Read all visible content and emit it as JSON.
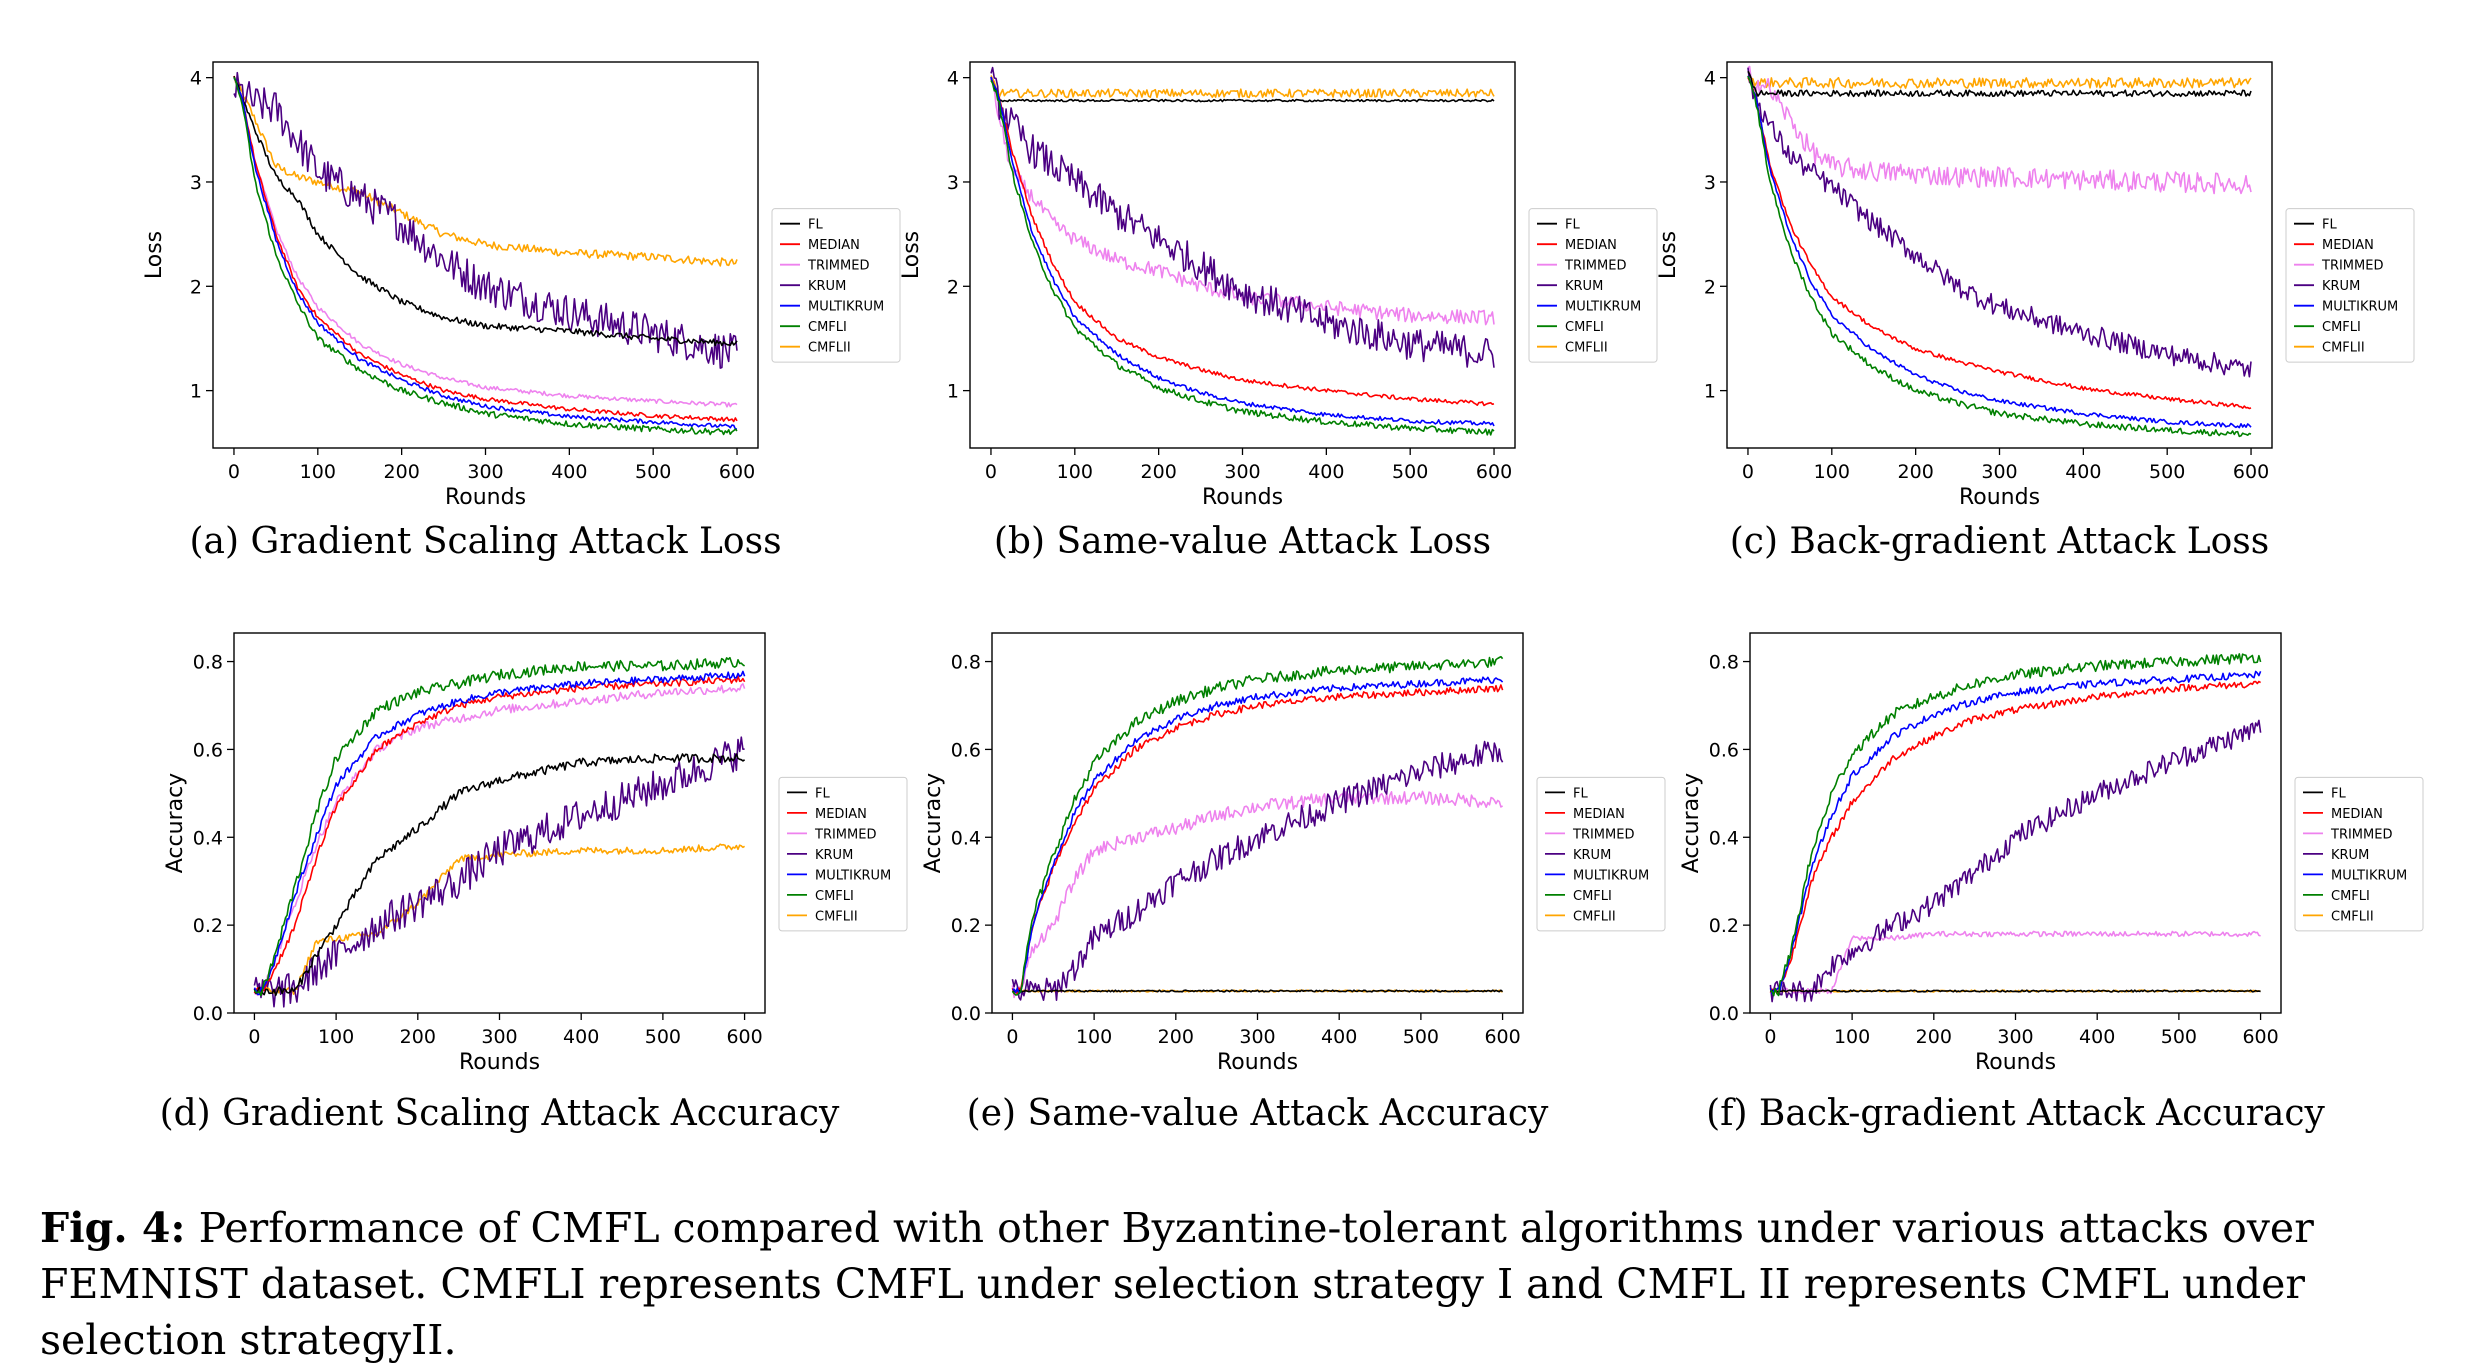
{
  "figure": {
    "caption_label": "Fig. 4:",
    "caption_text": "Performance of CMFL compared with other Byzantine-tolerant algorithms under various attacks over FEMNIST dataset. CMFLI represents CMFL under selection strategy I and CMFL II represents CMFL under selection strategyII."
  },
  "legend_labels": [
    "FL",
    "MEDIAN",
    "TRIMMED",
    "KRUM",
    "MULTIKRUM",
    "CMFLI",
    "CMFLII"
  ],
  "colors": {
    "FL": "#000000",
    "MEDIAN": "#ff0000",
    "TRIMMED": "#ee82ee",
    "KRUM": "#4b0082",
    "MULTIKRUM": "#0000ff",
    "CMFLI": "#008000",
    "CMFLII": "#ffa500"
  },
  "chart_data": [
    {
      "type": "line",
      "caption": "(a) Gradient Scaling Attack Loss",
      "xlabel": "Rounds",
      "ylabel": "Loss",
      "xlim": [
        -25,
        625
      ],
      "ylim": [
        0.45,
        4.15
      ],
      "xticks": [
        0,
        100,
        200,
        300,
        400,
        500,
        600
      ],
      "yticks": [
        1,
        2,
        3,
        4
      ],
      "grid": false,
      "legend": "right",
      "x": [
        0,
        10,
        25,
        50,
        75,
        100,
        150,
        200,
        250,
        300,
        400,
        500,
        600
      ],
      "series": [
        {
          "name": "FL",
          "values": [
            4.0,
            3.8,
            3.5,
            3.05,
            2.85,
            2.5,
            2.1,
            1.85,
            1.7,
            1.62,
            1.57,
            1.5,
            1.45
          ],
          "noise": 0.03
        },
        {
          "name": "MEDIAN",
          "values": [
            4.0,
            3.8,
            3.2,
            2.5,
            2.0,
            1.7,
            1.35,
            1.15,
            1.0,
            0.92,
            0.82,
            0.76,
            0.72
          ],
          "noise": 0.02
        },
        {
          "name": "TRIMMED",
          "values": [
            4.0,
            3.8,
            3.2,
            2.55,
            2.1,
            1.8,
            1.45,
            1.25,
            1.12,
            1.03,
            0.95,
            0.9,
            0.86
          ],
          "noise": 0.02
        },
        {
          "name": "KRUM",
          "values": [
            3.9,
            3.85,
            3.75,
            3.7,
            3.4,
            3.1,
            2.85,
            2.6,
            2.25,
            2.0,
            1.75,
            1.55,
            1.35
          ],
          "noise": 0.18
        },
        {
          "name": "MULTIKRUM",
          "values": [
            4.0,
            3.8,
            3.15,
            2.45,
            1.95,
            1.65,
            1.3,
            1.1,
            0.95,
            0.85,
            0.75,
            0.7,
            0.65
          ],
          "noise": 0.02
        },
        {
          "name": "CMFLI",
          "values": [
            4.0,
            3.75,
            3.0,
            2.3,
            1.85,
            1.5,
            1.2,
            1.0,
            0.88,
            0.78,
            0.68,
            0.63,
            0.6
          ],
          "noise": 0.03
        },
        {
          "name": "CMFLII",
          "values": [
            4.0,
            3.85,
            3.6,
            3.15,
            3.05,
            3.0,
            2.9,
            2.7,
            2.5,
            2.4,
            2.32,
            2.28,
            2.22
          ],
          "noise": 0.04
        }
      ]
    },
    {
      "type": "line",
      "caption": "(b) Same-value Attack Loss",
      "xlabel": "Rounds",
      "ylabel": "Loss",
      "xlim": [
        -25,
        625
      ],
      "ylim": [
        0.45,
        4.15
      ],
      "xticks": [
        0,
        100,
        200,
        300,
        400,
        500,
        600
      ],
      "yticks": [
        1,
        2,
        3,
        4
      ],
      "grid": false,
      "legend": "right",
      "x": [
        0,
        10,
        25,
        50,
        75,
        100,
        150,
        200,
        250,
        300,
        400,
        500,
        600
      ],
      "series": [
        {
          "name": "FL",
          "values": [
            4.0,
            3.78,
            3.78,
            3.78,
            3.78,
            3.78,
            3.78,
            3.78,
            3.78,
            3.78,
            3.78,
            3.78,
            3.78
          ],
          "noise": 0.01
        },
        {
          "name": "MEDIAN",
          "values": [
            4.0,
            3.8,
            3.3,
            2.65,
            2.2,
            1.85,
            1.5,
            1.32,
            1.2,
            1.1,
            1.0,
            0.92,
            0.87
          ],
          "noise": 0.02
        },
        {
          "name": "TRIMMED",
          "values": [
            4.0,
            3.6,
            3.1,
            2.85,
            2.6,
            2.45,
            2.25,
            2.15,
            2.0,
            1.9,
            1.8,
            1.72,
            1.7
          ],
          "noise": 0.07
        },
        {
          "name": "KRUM",
          "values": [
            4.0,
            3.75,
            3.55,
            3.3,
            3.15,
            3.0,
            2.7,
            2.45,
            2.2,
            1.95,
            1.65,
            1.45,
            1.35
          ],
          "noise": 0.16
        },
        {
          "name": "MULTIKRUM",
          "values": [
            4.0,
            3.8,
            3.2,
            2.5,
            2.05,
            1.7,
            1.35,
            1.12,
            0.98,
            0.88,
            0.77,
            0.71,
            0.68
          ],
          "noise": 0.02
        },
        {
          "name": "CMFLI",
          "values": [
            4.0,
            3.75,
            3.1,
            2.4,
            1.95,
            1.6,
            1.25,
            1.03,
            0.9,
            0.8,
            0.7,
            0.64,
            0.6
          ],
          "noise": 0.03
        },
        {
          "name": "CMFLII",
          "values": [
            4.0,
            3.85,
            3.85,
            3.85,
            3.85,
            3.85,
            3.85,
            3.85,
            3.85,
            3.85,
            3.85,
            3.85,
            3.85
          ],
          "noise": 0.04
        }
      ]
    },
    {
      "type": "line",
      "caption": "(c) Back-gradient Attack Loss",
      "xlabel": "Rounds",
      "ylabel": "Loss",
      "xlim": [
        -25,
        625
      ],
      "ylim": [
        0.45,
        4.15
      ],
      "xticks": [
        0,
        100,
        200,
        300,
        400,
        500,
        600
      ],
      "yticks": [
        1,
        2,
        3,
        4
      ],
      "grid": false,
      "legend": "right",
      "x": [
        0,
        10,
        25,
        50,
        75,
        100,
        150,
        200,
        250,
        300,
        400,
        500,
        600
      ],
      "series": [
        {
          "name": "FL",
          "values": [
            4.05,
            3.85,
            3.85,
            3.85,
            3.85,
            3.85,
            3.85,
            3.85,
            3.85,
            3.85,
            3.85,
            3.85,
            3.85
          ],
          "noise": 0.03
        },
        {
          "name": "MEDIAN",
          "values": [
            4.0,
            3.8,
            3.2,
            2.6,
            2.2,
            1.9,
            1.6,
            1.4,
            1.28,
            1.18,
            1.02,
            0.92,
            0.84
          ],
          "noise": 0.02
        },
        {
          "name": "TRIMMED",
          "values": [
            4.05,
            3.95,
            3.9,
            3.6,
            3.3,
            3.15,
            3.1,
            3.08,
            3.05,
            3.05,
            3.02,
            3.0,
            2.98
          ],
          "noise": 0.1
        },
        {
          "name": "KRUM",
          "values": [
            4.0,
            3.8,
            3.55,
            3.25,
            3.1,
            2.95,
            2.6,
            2.3,
            2.0,
            1.8,
            1.55,
            1.35,
            1.2
          ],
          "noise": 0.1
        },
        {
          "name": "MULTIKRUM",
          "values": [
            4.0,
            3.8,
            3.15,
            2.5,
            2.05,
            1.72,
            1.38,
            1.15,
            1.0,
            0.9,
            0.78,
            0.7,
            0.66
          ],
          "noise": 0.02
        },
        {
          "name": "CMFLI",
          "values": [
            4.0,
            3.75,
            3.05,
            2.35,
            1.9,
            1.55,
            1.22,
            1.0,
            0.88,
            0.78,
            0.68,
            0.62,
            0.58
          ],
          "noise": 0.03
        },
        {
          "name": "CMFLII",
          "values": [
            4.05,
            3.95,
            3.95,
            3.95,
            3.95,
            3.95,
            3.95,
            3.95,
            3.95,
            3.95,
            3.95,
            3.95,
            3.95
          ],
          "noise": 0.05
        }
      ]
    },
    {
      "type": "line",
      "caption": "(d) Gradient Scaling Attack Accuracy",
      "xlabel": "Rounds",
      "ylabel": "Accuracy",
      "xlim": [
        -25,
        625
      ],
      "ylim": [
        0.0,
        0.865
      ],
      "xticks": [
        0,
        100,
        200,
        300,
        400,
        500,
        600
      ],
      "yticks": [
        0.0,
        0.2,
        0.4,
        0.6,
        0.8
      ],
      "grid": false,
      "legend": "right",
      "x": [
        0,
        10,
        25,
        50,
        75,
        100,
        150,
        200,
        250,
        300,
        400,
        500,
        600
      ],
      "series": [
        {
          "name": "FL",
          "values": [
            0.05,
            0.05,
            0.05,
            0.05,
            0.13,
            0.2,
            0.35,
            0.42,
            0.5,
            0.53,
            0.57,
            0.58,
            0.58
          ],
          "noise": 0.01
        },
        {
          "name": "MEDIAN",
          "values": [
            0.05,
            0.05,
            0.1,
            0.2,
            0.35,
            0.47,
            0.6,
            0.66,
            0.7,
            0.72,
            0.74,
            0.75,
            0.76
          ],
          "noise": 0.008
        },
        {
          "name": "TRIMMED",
          "values": [
            0.05,
            0.05,
            0.12,
            0.25,
            0.38,
            0.48,
            0.6,
            0.65,
            0.67,
            0.69,
            0.71,
            0.73,
            0.74
          ],
          "noise": 0.01
        },
        {
          "name": "KRUM",
          "values": [
            0.05,
            0.05,
            0.05,
            0.05,
            0.1,
            0.13,
            0.2,
            0.25,
            0.3,
            0.37,
            0.45,
            0.52,
            0.6
          ],
          "noise": 0.04
        },
        {
          "name": "MULTIKRUM",
          "values": [
            0.05,
            0.05,
            0.12,
            0.27,
            0.4,
            0.52,
            0.63,
            0.68,
            0.71,
            0.73,
            0.75,
            0.76,
            0.77
          ],
          "noise": 0.008
        },
        {
          "name": "CMFLI",
          "values": [
            0.05,
            0.05,
            0.13,
            0.29,
            0.45,
            0.58,
            0.69,
            0.73,
            0.75,
            0.77,
            0.79,
            0.79,
            0.8
          ],
          "noise": 0.012
        },
        {
          "name": "CMFLII",
          "values": [
            0.05,
            0.05,
            0.05,
            0.05,
            0.16,
            0.17,
            0.18,
            0.25,
            0.35,
            0.36,
            0.37,
            0.37,
            0.38
          ],
          "noise": 0.008
        }
      ]
    },
    {
      "type": "line",
      "caption": "(e) Same-value Attack Accuracy",
      "xlabel": "Rounds",
      "ylabel": "Accuracy",
      "xlim": [
        -25,
        625
      ],
      "ylim": [
        0.0,
        0.865
      ],
      "xticks": [
        0,
        100,
        200,
        300,
        400,
        500,
        600
      ],
      "yticks": [
        0.0,
        0.2,
        0.4,
        0.6,
        0.8
      ],
      "grid": false,
      "legend": "right",
      "x": [
        0,
        10,
        25,
        50,
        75,
        100,
        150,
        200,
        250,
        300,
        400,
        500,
        600
      ],
      "series": [
        {
          "name": "FL",
          "values": [
            0.05,
            0.05,
            0.05,
            0.05,
            0.05,
            0.05,
            0.05,
            0.05,
            0.05,
            0.05,
            0.05,
            0.05,
            0.05
          ],
          "noise": 0.002
        },
        {
          "name": "MEDIAN",
          "values": [
            0.05,
            0.05,
            0.2,
            0.33,
            0.43,
            0.51,
            0.6,
            0.65,
            0.68,
            0.7,
            0.72,
            0.73,
            0.74
          ],
          "noise": 0.008
        },
        {
          "name": "TRIMMED",
          "values": [
            0.05,
            0.05,
            0.15,
            0.2,
            0.3,
            0.37,
            0.4,
            0.42,
            0.45,
            0.47,
            0.49,
            0.49,
            0.48
          ],
          "noise": 0.015
        },
        {
          "name": "KRUM",
          "values": [
            0.05,
            0.05,
            0.05,
            0.05,
            0.1,
            0.17,
            0.23,
            0.3,
            0.35,
            0.4,
            0.48,
            0.55,
            0.6
          ],
          "noise": 0.03
        },
        {
          "name": "MULTIKRUM",
          "values": [
            0.05,
            0.05,
            0.2,
            0.34,
            0.45,
            0.53,
            0.62,
            0.67,
            0.7,
            0.72,
            0.74,
            0.75,
            0.76
          ],
          "noise": 0.008
        },
        {
          "name": "CMFLI",
          "values": [
            0.05,
            0.05,
            0.22,
            0.36,
            0.48,
            0.57,
            0.66,
            0.71,
            0.74,
            0.76,
            0.78,
            0.79,
            0.8
          ],
          "noise": 0.012
        },
        {
          "name": "CMFLII",
          "values": [
            0.05,
            0.05,
            0.05,
            0.05,
            0.05,
            0.05,
            0.05,
            0.05,
            0.05,
            0.05,
            0.05,
            0.05,
            0.05
          ],
          "noise": 0.002
        }
      ]
    },
    {
      "type": "line",
      "caption": "(f) Back-gradient Attack Accuracy",
      "xlabel": "Rounds",
      "ylabel": "Accuracy",
      "xlim": [
        -25,
        625
      ],
      "ylim": [
        0.0,
        0.865
      ],
      "xticks": [
        0,
        100,
        200,
        300,
        400,
        500,
        600
      ],
      "yticks": [
        0.0,
        0.2,
        0.4,
        0.6,
        0.8
      ],
      "grid": false,
      "legend": "right",
      "x": [
        0,
        10,
        25,
        50,
        75,
        100,
        150,
        200,
        250,
        300,
        400,
        500,
        600
      ],
      "series": [
        {
          "name": "FL",
          "values": [
            0.05,
            0.05,
            0.05,
            0.05,
            0.05,
            0.05,
            0.05,
            0.05,
            0.05,
            0.05,
            0.05,
            0.05,
            0.05
          ],
          "noise": 0.002
        },
        {
          "name": "MEDIAN",
          "values": [
            0.05,
            0.05,
            0.12,
            0.3,
            0.4,
            0.48,
            0.58,
            0.63,
            0.67,
            0.69,
            0.72,
            0.74,
            0.75
          ],
          "noise": 0.008
        },
        {
          "name": "TRIMMED",
          "values": [
            0.05,
            0.05,
            0.05,
            0.05,
            0.05,
            0.17,
            0.17,
            0.18,
            0.18,
            0.18,
            0.18,
            0.18,
            0.18
          ],
          "noise": 0.006
        },
        {
          "name": "KRUM",
          "values": [
            0.05,
            0.05,
            0.05,
            0.05,
            0.11,
            0.14,
            0.2,
            0.25,
            0.32,
            0.4,
            0.5,
            0.58,
            0.65
          ],
          "noise": 0.025
        },
        {
          "name": "MULTIKRUM",
          "values": [
            0.05,
            0.05,
            0.13,
            0.33,
            0.45,
            0.54,
            0.63,
            0.68,
            0.71,
            0.73,
            0.75,
            0.76,
            0.77
          ],
          "noise": 0.008
        },
        {
          "name": "CMFLI",
          "values": [
            0.05,
            0.05,
            0.14,
            0.36,
            0.5,
            0.59,
            0.68,
            0.72,
            0.75,
            0.77,
            0.79,
            0.8,
            0.81
          ],
          "noise": 0.012
        },
        {
          "name": "CMFLII",
          "values": [
            0.05,
            0.05,
            0.05,
            0.05,
            0.05,
            0.05,
            0.05,
            0.05,
            0.05,
            0.05,
            0.05,
            0.05,
            0.05
          ],
          "noise": 0.002
        }
      ]
    }
  ]
}
